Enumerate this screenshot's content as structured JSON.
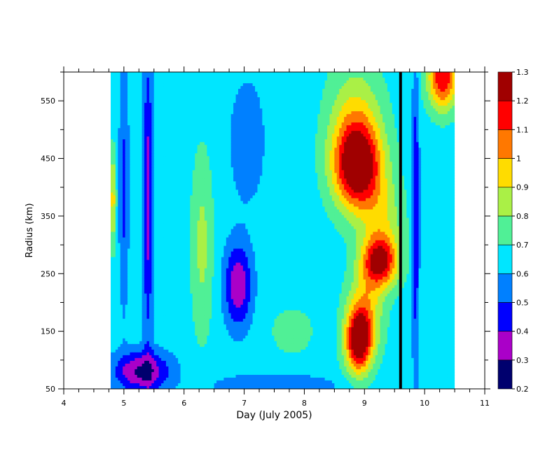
{
  "chart_data": {
    "type": "heatmap",
    "title": "",
    "xlabel": "Day (July 2005)",
    "ylabel": "Radius (km)",
    "xlim": [
      4,
      11
    ],
    "ylim": [
      50,
      600
    ],
    "x_ticks": [
      4,
      5,
      6,
      7,
      8,
      9,
      10,
      11
    ],
    "y_ticks": [
      50,
      150,
      250,
      350,
      450,
      550
    ],
    "data_x_range": [
      4.78,
      10.5
    ],
    "vertical_marker_x": 9.6,
    "colorbar": {
      "levels": [
        0.2,
        0.3,
        0.4,
        0.5,
        0.6,
        0.7,
        0.8,
        0.9,
        1,
        1.1,
        1.2,
        1.3
      ],
      "labels": [
        "0.2",
        "0.3",
        "0.4",
        "0.5",
        "0.6",
        "0.7",
        "0.8",
        "0.9",
        "1",
        "1.1",
        "1.2",
        "1.3"
      ],
      "colors": [
        "#00006e",
        "#aa00c8",
        "#0000ff",
        "#0080ff",
        "#00e6ff",
        "#50f096",
        "#aaf046",
        "#ffdc00",
        "#ff7800",
        "#ff0000",
        "#a00000"
      ]
    },
    "x_grid": [
      4.78,
      4.9,
      5.0,
      5.15,
      5.3,
      5.45,
      5.7,
      6.0,
      6.3,
      6.6,
      6.9,
      7.2,
      7.5,
      7.8,
      8.1,
      8.4,
      8.6,
      8.8,
      9.0,
      9.2,
      9.4,
      9.6,
      9.75,
      9.9,
      10.1,
      10.3,
      10.5
    ],
    "y_grid": [
      50,
      75,
      100,
      125,
      150,
      175,
      200,
      225,
      250,
      275,
      300,
      325,
      350,
      375,
      400,
      425,
      450,
      475,
      500,
      525,
      550,
      575,
      600
    ],
    "blobs": [
      {
        "x": 6.9,
        "y": 230,
        "sx": 0.22,
        "sy": 70,
        "a": -0.35
      },
      {
        "x": 7.05,
        "y": 480,
        "sx": 0.3,
        "sy": 110,
        "a": -0.12
      },
      {
        "x": 8.88,
        "y": 435,
        "sx": 0.4,
        "sy": 75,
        "a": 0.62
      },
      {
        "x": 8.85,
        "y": 510,
        "sx": 0.45,
        "sy": 110,
        "a": 0.25
      },
      {
        "x": 9.25,
        "y": 270,
        "sx": 0.3,
        "sy": 45,
        "a": 0.55
      },
      {
        "x": 8.9,
        "y": 130,
        "sx": 0.22,
        "sy": 55,
        "a": 0.6
      },
      {
        "x": 9.0,
        "y": 180,
        "sx": 0.3,
        "sy": 70,
        "a": 0.3
      },
      {
        "x": 9.3,
        "y": 340,
        "sx": 0.35,
        "sy": 80,
        "a": 0.2
      },
      {
        "x": 6.3,
        "y": 300,
        "sx": 0.18,
        "sy": 160,
        "a": 0.18
      },
      {
        "x": 5.4,
        "y": 380,
        "sx": 0.08,
        "sy": 250,
        "a": -0.3
      },
      {
        "x": 5.0,
        "y": 400,
        "sx": 0.08,
        "sy": 200,
        "a": -0.18
      },
      {
        "x": 5.3,
        "y": 80,
        "sx": 0.45,
        "sy": 35,
        "a": -0.38
      },
      {
        "x": 7.5,
        "y": 55,
        "sx": 1.0,
        "sy": 20,
        "a": -0.15
      },
      {
        "x": 10.3,
        "y": 590,
        "sx": 0.25,
        "sy": 55,
        "a": 0.55
      },
      {
        "x": 9.85,
        "y": 350,
        "sx": 0.06,
        "sy": 260,
        "a": -0.25
      },
      {
        "x": 4.82,
        "y": 380,
        "sx": 0.05,
        "sy": 80,
        "a": 0.3
      },
      {
        "x": 7.8,
        "y": 150,
        "sx": 0.35,
        "sy": 40,
        "a": 0.12
      }
    ],
    "base_value": 0.65
  }
}
